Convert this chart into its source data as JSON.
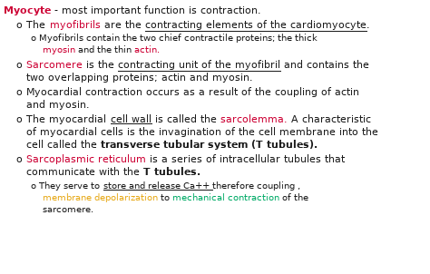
{
  "background_color": "#ffffff",
  "fig_width": 4.74,
  "fig_height": 3.02,
  "dpi": 100
}
